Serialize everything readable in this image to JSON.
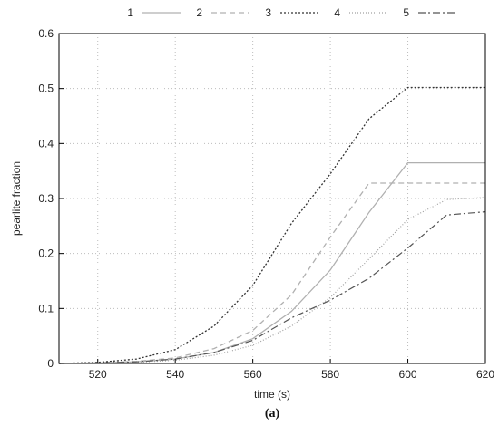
{
  "chart_data": {
    "type": "line",
    "xlabel": "time (s)",
    "ylabel": "pearlite fraction",
    "caption": "(a)",
    "xlim": [
      510,
      620
    ],
    "ylim": [
      0,
      0.6
    ],
    "xticks": [
      520,
      540,
      560,
      580,
      600,
      620
    ],
    "yticks": [
      0,
      0.1,
      0.2,
      0.3,
      0.4,
      0.5,
      0.6
    ],
    "grid": true,
    "legend_position": "top",
    "series": [
      {
        "name": "1",
        "color": "#b0b0b0",
        "dash": "",
        "width": 1.3,
        "x": [
          510,
          520,
          530,
          540,
          550,
          560,
          570,
          580,
          590,
          600,
          610,
          620
        ],
        "y": [
          0,
          0.001,
          0.003,
          0.008,
          0.02,
          0.045,
          0.095,
          0.17,
          0.275,
          0.365,
          0.365,
          0.365
        ]
      },
      {
        "name": "2",
        "color": "#b0b0b0",
        "dash": "6 4",
        "width": 1.3,
        "x": [
          510,
          520,
          530,
          540,
          550,
          560,
          570,
          580,
          590,
          600,
          610,
          620
        ],
        "y": [
          0,
          0.001,
          0.004,
          0.01,
          0.027,
          0.06,
          0.125,
          0.23,
          0.328,
          0.328,
          0.328,
          0.328
        ]
      },
      {
        "name": "3",
        "color": "#333333",
        "dash": "2 2",
        "width": 1.3,
        "x": [
          510,
          520,
          530,
          540,
          550,
          560,
          570,
          580,
          590,
          600,
          610,
          620
        ],
        "y": [
          0,
          0.002,
          0.008,
          0.025,
          0.068,
          0.142,
          0.255,
          0.345,
          0.445,
          0.502,
          0.502,
          0.502
        ]
      },
      {
        "name": "4",
        "color": "#a0a0a0",
        "dash": "1 2",
        "width": 1.2,
        "x": [
          510,
          520,
          530,
          540,
          550,
          560,
          570,
          580,
          590,
          600,
          610,
          620
        ],
        "y": [
          0,
          0.001,
          0.002,
          0.006,
          0.015,
          0.033,
          0.068,
          0.12,
          0.19,
          0.262,
          0.298,
          0.302
        ]
      },
      {
        "name": "5",
        "color": "#555555",
        "dash": "8 3 2 3",
        "width": 1.2,
        "x": [
          510,
          520,
          530,
          540,
          550,
          560,
          570,
          580,
          590,
          600,
          610,
          620
        ],
        "y": [
          0,
          0.001,
          0.003,
          0.008,
          0.02,
          0.042,
          0.083,
          0.115,
          0.155,
          0.21,
          0.27,
          0.276
        ]
      }
    ]
  }
}
